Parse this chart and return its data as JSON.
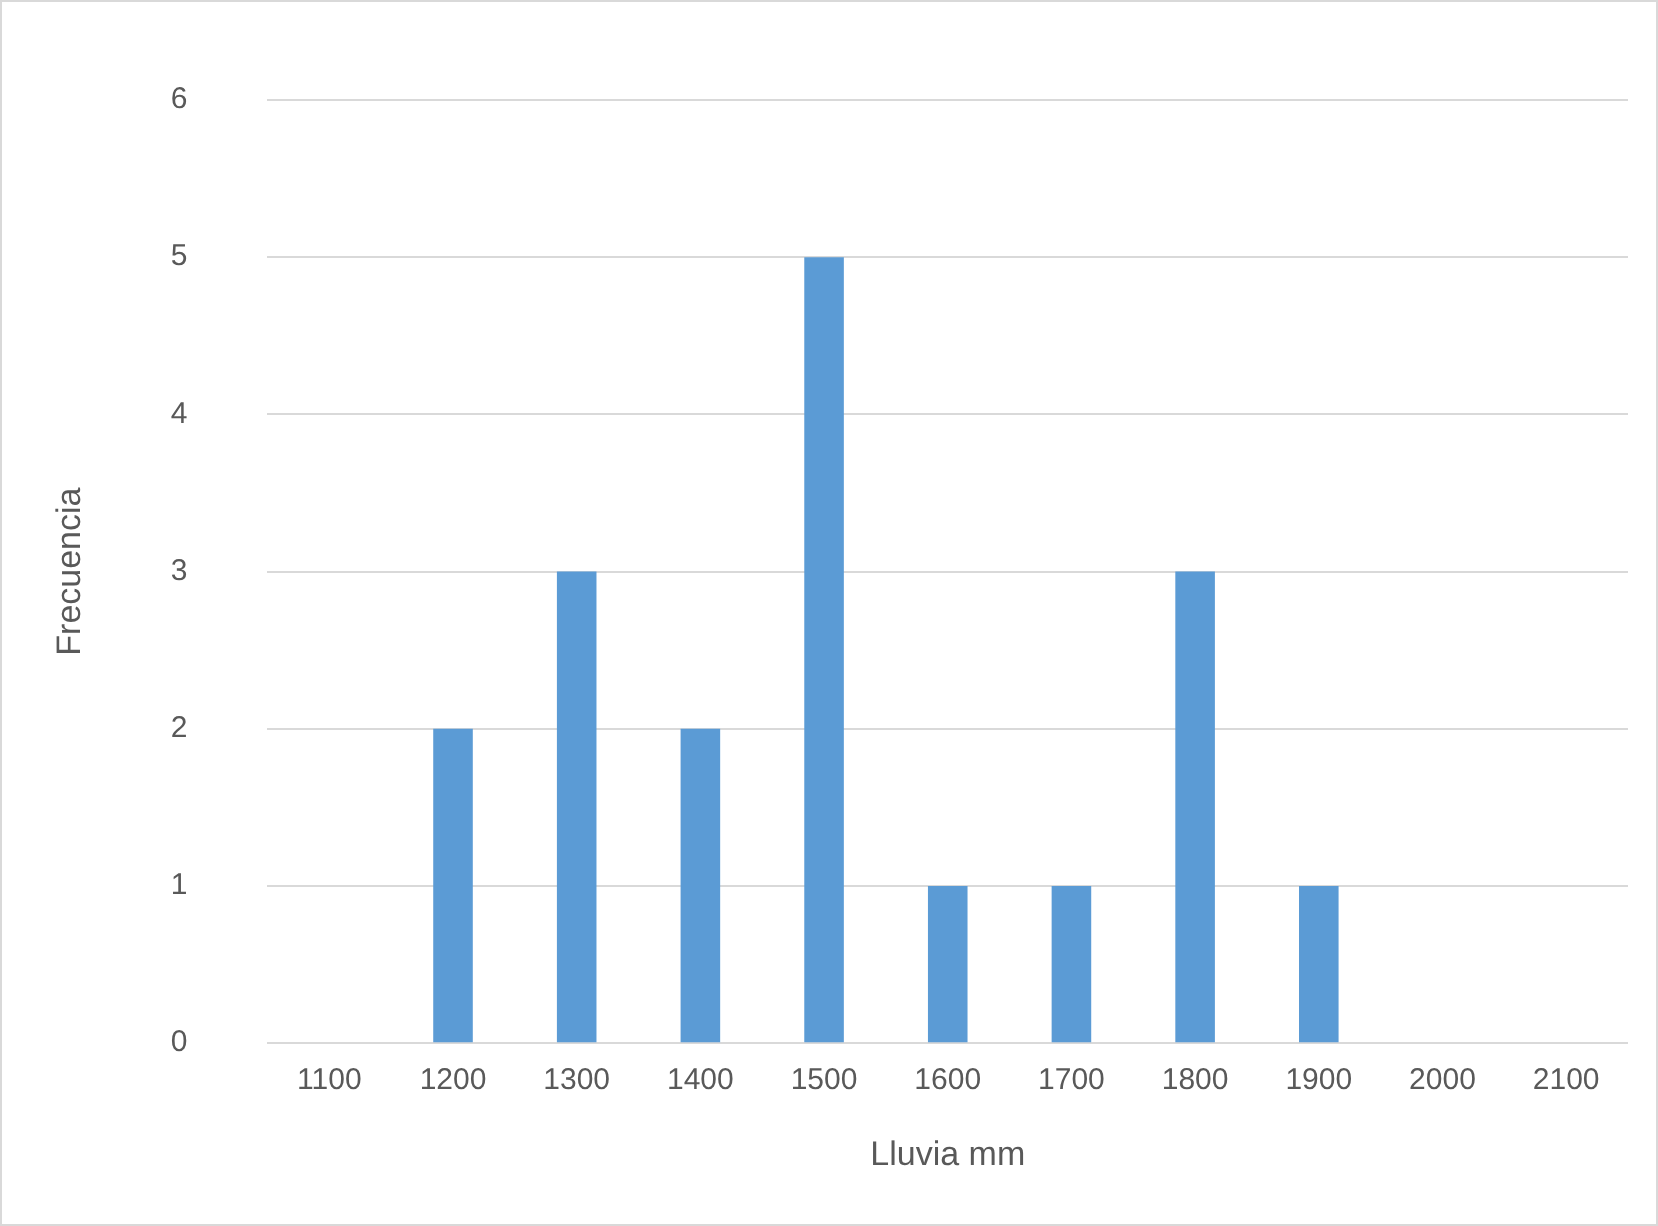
{
  "chart_data": {
    "type": "bar",
    "xlabel": "Lluvia mm",
    "ylabel": "Frecuencia",
    "categories": [
      "1100",
      "1200",
      "1300",
      "1400",
      "1500",
      "1600",
      "1700",
      "1800",
      "1900",
      "2000",
      "2100"
    ],
    "values": [
      0,
      2,
      3,
      2,
      5,
      1,
      1,
      3,
      1,
      0,
      0
    ],
    "color": "#5b9bd5",
    "ylim": [
      0,
      6
    ],
    "yticks": [
      0,
      1,
      2,
      3,
      4,
      5,
      6
    ],
    "grid": "y"
  }
}
